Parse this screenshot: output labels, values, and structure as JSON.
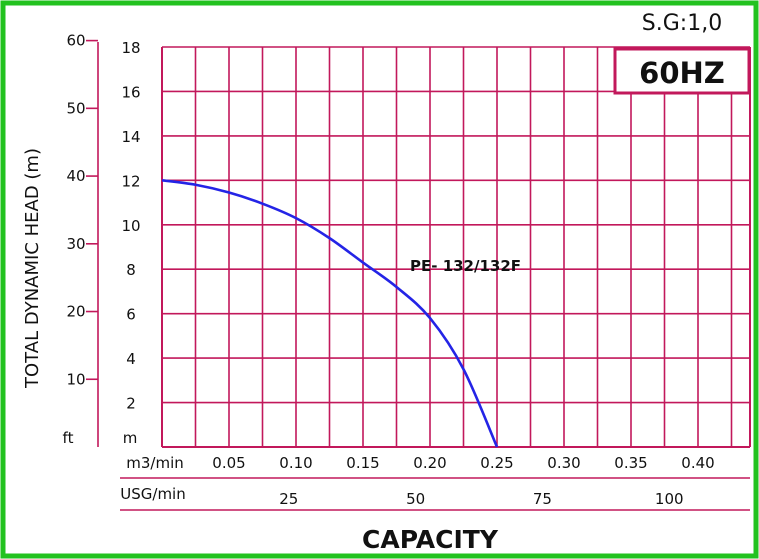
{
  "colors": {
    "frame": "#22c21f",
    "grid": "#c2185b",
    "curve": "#2424e6",
    "text": "#111111",
    "hz_box_border": "#c2185b"
  },
  "header": {
    "sg_label": "S.G:1,0",
    "hz_label": "60HZ"
  },
  "axes": {
    "y_title": "TOTAL DYNAMIC HEAD (m)",
    "x_title": "CAPACITY",
    "unit_ft": "ft",
    "unit_m": "m",
    "unit_m3": "m3/min",
    "unit_usg": "USG/min"
  },
  "chart_data": {
    "type": "line",
    "title": "",
    "xlabel": "CAPACITY",
    "ylabel": "TOTAL DYNAMIC HEAD (m)",
    "xlim": [
      0,
      0.4
    ],
    "ylim": [
      0,
      18
    ],
    "grid": true,
    "x_ticks_m3min": [
      "0.05",
      "0.10",
      "0.15",
      "0.20",
      "0.25",
      "0.30",
      "0.35",
      "0.40"
    ],
    "x_ticks_m3min_values": [
      0.05,
      0.1,
      0.15,
      0.2,
      0.25,
      0.3,
      0.35,
      0.4
    ],
    "x_ticks_usgmin": [
      "25",
      "50",
      "75",
      "100"
    ],
    "x_ticks_usgmin_values": [
      25,
      50,
      75,
      100
    ],
    "y_ticks_m": [
      "2",
      "4",
      "6",
      "8",
      "10",
      "12",
      "14",
      "16",
      "18"
    ],
    "y_ticks_m_values": [
      2,
      4,
      6,
      8,
      10,
      12,
      14,
      16,
      18
    ],
    "y_ticks_ft": [
      "10",
      "20",
      "30",
      "40",
      "50",
      "60"
    ],
    "y_ticks_ft_values": [
      10,
      20,
      30,
      40,
      50,
      60
    ],
    "series": [
      {
        "name": "PE- 132/132F",
        "x": [
          0.0,
          0.025,
          0.05,
          0.075,
          0.1,
          0.125,
          0.15,
          0.175,
          0.2,
          0.225,
          0.25
        ],
        "y": [
          12.0,
          11.8,
          11.45,
          10.95,
          10.3,
          9.4,
          8.3,
          7.2,
          5.8,
          3.5,
          0.0
        ]
      }
    ]
  }
}
